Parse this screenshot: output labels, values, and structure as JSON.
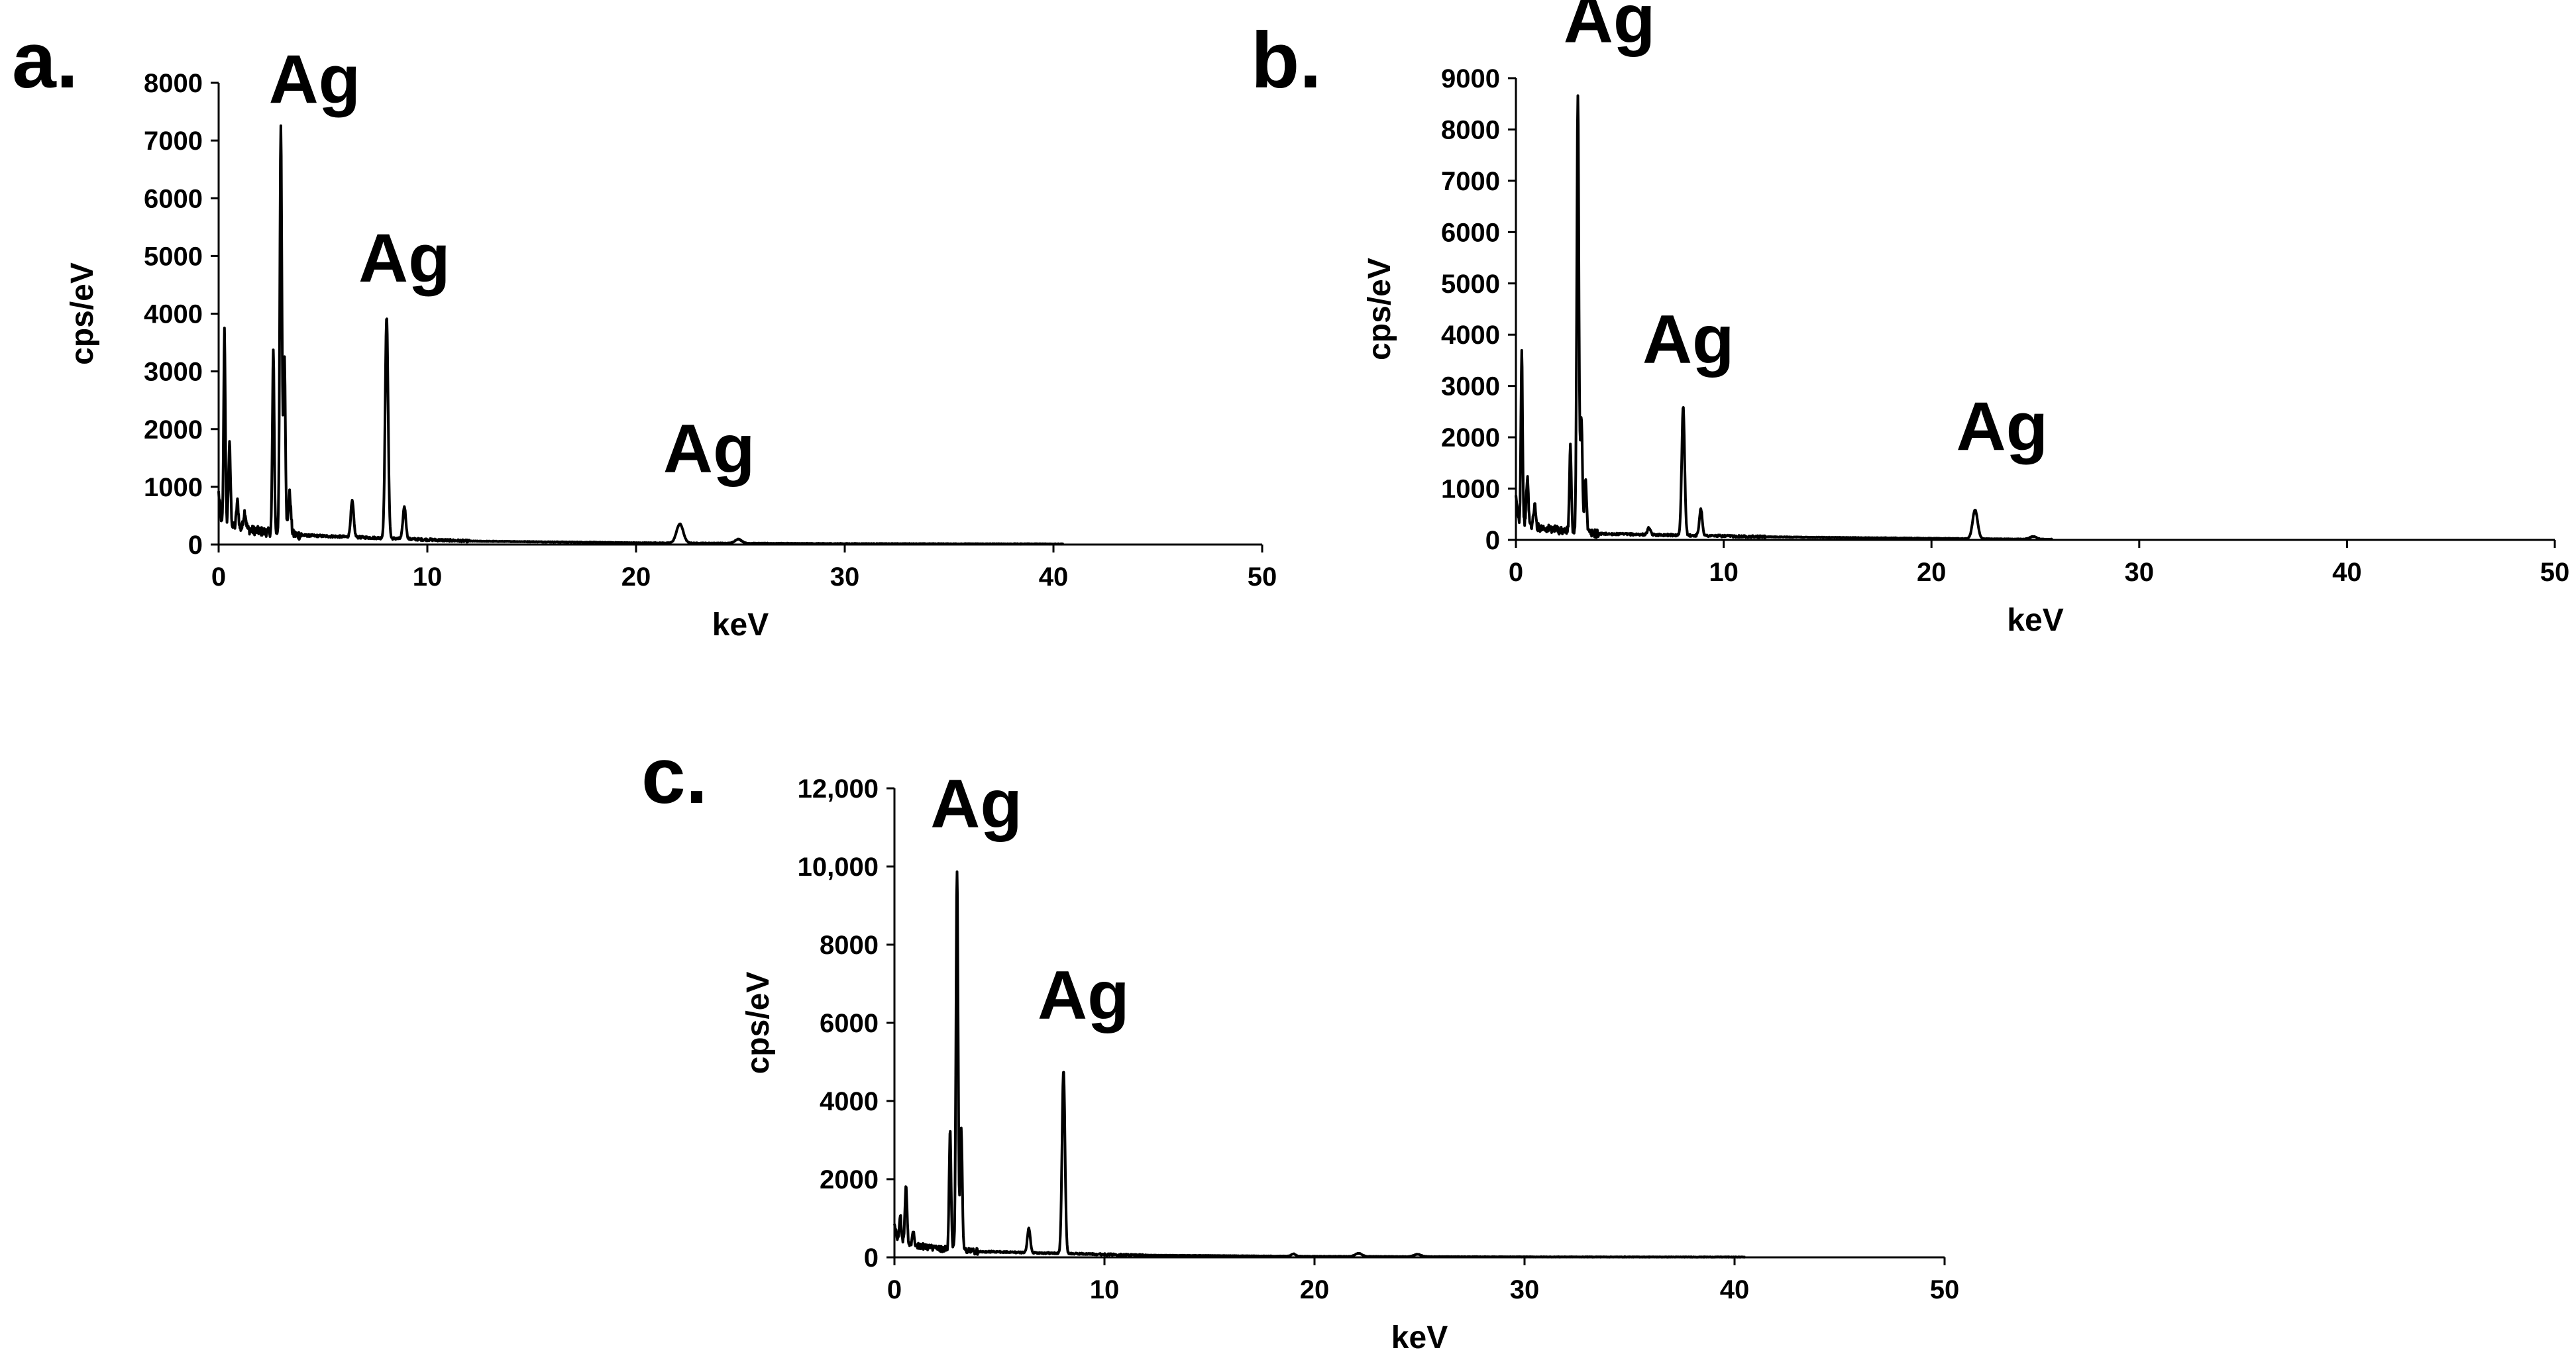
{
  "figure": {
    "panels": [
      "a.",
      "b.",
      "c."
    ]
  },
  "chart_data": [
    {
      "panel": "a.",
      "type": "line",
      "xlabel": "keV",
      "ylabel": "cps/eV",
      "xlim": [
        0,
        50
      ],
      "ylim": [
        0,
        8000
      ],
      "xticks": [
        "0",
        "10",
        "20",
        "30",
        "40",
        "50"
      ],
      "xtick_values": [
        0,
        10,
        20,
        30,
        40,
        50
      ],
      "yticks": [
        "0",
        "1000",
        "2000",
        "3000",
        "4000",
        "5000",
        "6000",
        "7000",
        "8000"
      ],
      "ytick_values": [
        0,
        1000,
        2000,
        3000,
        4000,
        5000,
        6000,
        7000,
        8000
      ],
      "spectrum_end": 40.5,
      "baseline": [
        [
          0,
          900
        ],
        [
          0.15,
          350
        ],
        [
          1.0,
          280
        ],
        [
          2.2,
          220
        ],
        [
          4.0,
          160
        ],
        [
          8,
          110
        ],
        [
          12,
          60
        ],
        [
          20,
          30
        ],
        [
          30,
          15
        ],
        [
          40.5,
          10
        ]
      ],
      "peaks": [
        {
          "x": 0.28,
          "y": 3400,
          "w": 0.04
        },
        {
          "x": 0.52,
          "y": 1400,
          "w": 0.05
        },
        {
          "x": 0.9,
          "y": 450,
          "w": 0.05
        },
        {
          "x": 1.25,
          "y": 300,
          "w": 0.06
        },
        {
          "x": 2.62,
          "y": 3100,
          "w": 0.045
        },
        {
          "x": 2.98,
          "y": 7000,
          "w": 0.05
        },
        {
          "x": 3.15,
          "y": 3100,
          "w": 0.05
        },
        {
          "x": 3.4,
          "y": 700,
          "w": 0.06
        },
        {
          "x": 6.4,
          "y": 620,
          "w": 0.07
        },
        {
          "x": 8.05,
          "y": 3850,
          "w": 0.07
        },
        {
          "x": 8.9,
          "y": 560,
          "w": 0.07
        },
        {
          "x": 22.1,
          "y": 330,
          "w": 0.16
        },
        {
          "x": 24.9,
          "y": 70,
          "w": 0.16
        }
      ],
      "annotations": [
        {
          "text": "Ag",
          "x": 4.6,
          "y": 7650
        },
        {
          "text": "Ag",
          "x": 8.9,
          "y": 4550
        },
        {
          "text": "Ag",
          "x": 23.5,
          "y": 1250
        }
      ]
    },
    {
      "panel": "b.",
      "type": "line",
      "xlabel": "keV",
      "ylabel": "cps/eV",
      "xlim": [
        0,
        50
      ],
      "ylim": [
        0,
        9000
      ],
      "xticks": [
        "0",
        "10",
        "20",
        "30",
        "40",
        "50"
      ],
      "xtick_values": [
        0,
        10,
        20,
        30,
        40,
        50
      ],
      "yticks": [
        "0",
        "1000",
        "2000",
        "3000",
        "4000",
        "5000",
        "6000",
        "7000",
        "8000",
        "9000"
      ],
      "ytick_values": [
        0,
        1000,
        2000,
        3000,
        4000,
        5000,
        6000,
        7000,
        8000,
        9000
      ],
      "spectrum_end": 25.8,
      "baseline": [
        [
          0,
          800
        ],
        [
          0.15,
          350
        ],
        [
          1.0,
          250
        ],
        [
          2.2,
          180
        ],
        [
          4.0,
          120
        ],
        [
          8,
          90
        ],
        [
          12,
          60
        ],
        [
          20,
          30
        ],
        [
          25.8,
          12
        ]
      ],
      "peaks": [
        {
          "x": 0.28,
          "y": 3400,
          "w": 0.04
        },
        {
          "x": 0.55,
          "y": 900,
          "w": 0.05
        },
        {
          "x": 0.9,
          "y": 420,
          "w": 0.05
        },
        {
          "x": 2.62,
          "y": 1650,
          "w": 0.045
        },
        {
          "x": 2.98,
          "y": 8500,
          "w": 0.05
        },
        {
          "x": 3.15,
          "y": 2200,
          "w": 0.05
        },
        {
          "x": 3.35,
          "y": 1100,
          "w": 0.05
        },
        {
          "x": 6.4,
          "y": 130,
          "w": 0.07
        },
        {
          "x": 8.05,
          "y": 2500,
          "w": 0.07
        },
        {
          "x": 8.9,
          "y": 520,
          "w": 0.07
        },
        {
          "x": 22.1,
          "y": 560,
          "w": 0.12
        },
        {
          "x": 24.9,
          "y": 50,
          "w": 0.16
        }
      ],
      "annotations": [
        {
          "text": "Ag",
          "x": 4.5,
          "y": 9700
        },
        {
          "text": "Ag",
          "x": 8.3,
          "y": 3450
        },
        {
          "text": "Ag",
          "x": 23.4,
          "y": 1750
        }
      ]
    },
    {
      "panel": "c.",
      "type": "line",
      "xlabel": "keV",
      "ylabel": "cps/eV",
      "xlim": [
        0,
        50
      ],
      "ylim": [
        0,
        12000
      ],
      "xticks": [
        "0",
        "10",
        "20",
        "30",
        "40",
        "50"
      ],
      "xtick_values": [
        0,
        10,
        20,
        30,
        40,
        50
      ],
      "yticks": [
        "0",
        "2000",
        "4000",
        "6000",
        "8000",
        "10,000",
        "12,000"
      ],
      "ytick_values": [
        0,
        2000,
        4000,
        6000,
        8000,
        10000,
        12000
      ],
      "spectrum_end": 40.5,
      "baseline": [
        [
          0,
          900
        ],
        [
          0.15,
          450
        ],
        [
          1.0,
          300
        ],
        [
          2.2,
          220
        ],
        [
          4.0,
          150
        ],
        [
          8,
          100
        ],
        [
          12,
          55
        ],
        [
          20,
          25
        ],
        [
          30,
          12
        ],
        [
          40.5,
          8
        ]
      ],
      "peaks": [
        {
          "x": 0.28,
          "y": 700,
          "w": 0.04
        },
        {
          "x": 0.55,
          "y": 1400,
          "w": 0.05
        },
        {
          "x": 0.9,
          "y": 350,
          "w": 0.05
        },
        {
          "x": 2.65,
          "y": 3100,
          "w": 0.045
        },
        {
          "x": 2.98,
          "y": 9750,
          "w": 0.05
        },
        {
          "x": 3.18,
          "y": 3100,
          "w": 0.05
        },
        {
          "x": 6.4,
          "y": 620,
          "w": 0.07
        },
        {
          "x": 8.05,
          "y": 4700,
          "w": 0.07
        },
        {
          "x": 19.0,
          "y": 60,
          "w": 0.1
        },
        {
          "x": 22.1,
          "y": 80,
          "w": 0.16
        },
        {
          "x": 24.9,
          "y": 60,
          "w": 0.16
        }
      ],
      "annotations": [
        {
          "text": "Ag",
          "x": 3.9,
          "y": 11000
        },
        {
          "text": "Ag",
          "x": 9.0,
          "y": 6100
        }
      ]
    }
  ]
}
